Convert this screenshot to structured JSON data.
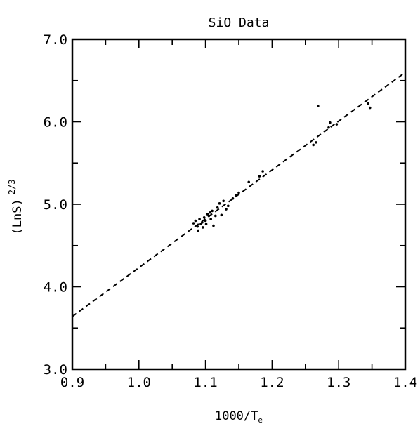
{
  "chart_data": {
    "type": "scatter",
    "title": "SiO Data",
    "xlabel": "1000/T",
    "xlabel_subscript": "e",
    "ylabel": "(LnS)",
    "ylabel_superscript": "2/3",
    "xlim": [
      0.9,
      1.4
    ],
    "ylim": [
      3.0,
      7.0
    ],
    "x_ticks": [
      0.9,
      1.0,
      1.1,
      1.2,
      1.3,
      1.4
    ],
    "x_tick_labels": [
      "0.9",
      "1.0",
      "1.1",
      "1.2",
      "1.3",
      "1.4"
    ],
    "y_ticks": [
      3.0,
      4.0,
      5.0,
      6.0,
      7.0
    ],
    "y_tick_labels": [
      "3.0",
      "4.0",
      "5.0",
      "6.0",
      "7.0"
    ],
    "grid": false,
    "series": [
      {
        "style": "dots",
        "color": "#000000",
        "points": [
          [
            1.082,
            4.77
          ],
          [
            1.085,
            4.8
          ],
          [
            1.088,
            4.73
          ],
          [
            1.089,
            4.68
          ],
          [
            1.091,
            4.82
          ],
          [
            1.093,
            4.76
          ],
          [
            1.095,
            4.78
          ],
          [
            1.096,
            4.72
          ],
          [
            1.098,
            4.84
          ],
          [
            1.1,
            4.8
          ],
          [
            1.101,
            4.76
          ],
          [
            1.103,
            4.88
          ],
          [
            1.105,
            4.86
          ],
          [
            1.107,
            4.9
          ],
          [
            1.108,
            4.82
          ],
          [
            1.11,
            4.92
          ],
          [
            1.112,
            4.74
          ],
          [
            1.115,
            4.86
          ],
          [
            1.118,
            4.96
          ],
          [
            1.121,
            5.01
          ],
          [
            1.124,
            4.87
          ],
          [
            1.127,
            5.04
          ],
          [
            1.131,
            4.94
          ],
          [
            1.134,
            4.98
          ],
          [
            1.141,
            5.07
          ],
          [
            1.146,
            5.11
          ],
          [
            1.15,
            5.14
          ],
          [
            1.165,
            5.27
          ],
          [
            1.181,
            5.34
          ],
          [
            1.186,
            5.4
          ],
          [
            1.262,
            5.72
          ],
          [
            1.266,
            5.75
          ],
          [
            1.269,
            6.19
          ],
          [
            1.285,
            5.93
          ],
          [
            1.287,
            5.99
          ],
          [
            1.297,
            5.97
          ],
          [
            1.344,
            6.22
          ],
          [
            1.347,
            6.17
          ]
        ]
      },
      {
        "style": "dashed-line",
        "color": "#000000",
        "x": [
          0.9,
          1.4
        ],
        "y": [
          3.64,
          6.6
        ]
      }
    ]
  }
}
